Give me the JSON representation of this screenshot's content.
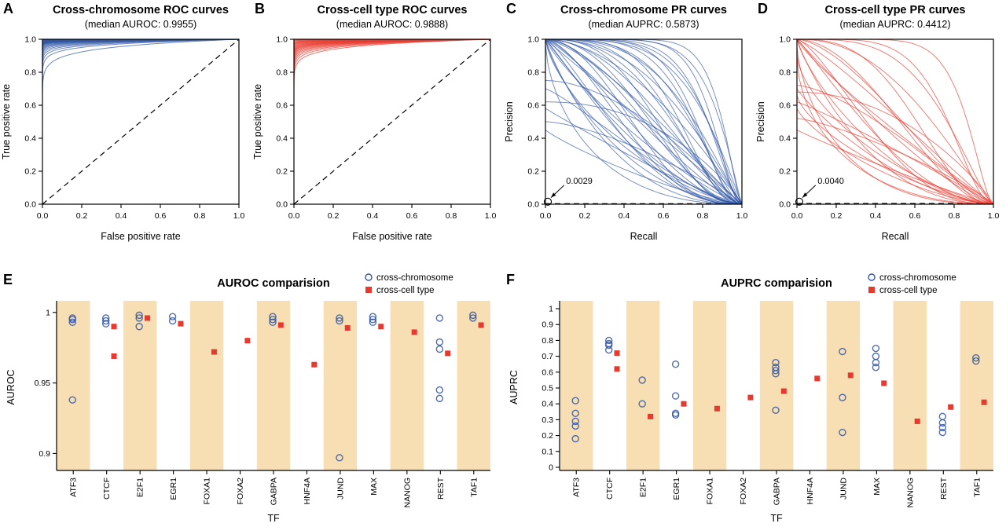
{
  "chart_data": [
    {
      "letter": "A",
      "kind": "roc",
      "type": "line",
      "title": "Cross-chromosome ROC curves",
      "subtitle": "(median AUROC: 0.9955)",
      "xlabel": "False positive rate",
      "ylabel": "True positive rate",
      "xlim": [
        0,
        1
      ],
      "ylim": [
        0,
        1
      ],
      "xtick_vals": [
        0,
        0.2,
        0.4,
        0.6,
        0.8,
        1.0
      ],
      "xtick_labels": [
        "0.0",
        "0.2",
        "0.4",
        "0.6",
        "0.8",
        "1.0"
      ],
      "ytick_vals": [
        0,
        0.2,
        0.4,
        0.6,
        0.8,
        1.0
      ],
      "ytick_labels": [
        "0.0",
        "0.2",
        "0.4",
        "0.6",
        "0.8",
        "1.0"
      ],
      "color": "#2f55a4",
      "diagonal": true,
      "curve_aucs": [
        0.9996,
        0.9993,
        0.999,
        0.9988,
        0.9986,
        0.9984,
        0.9982,
        0.998,
        0.9978,
        0.9976,
        0.9974,
        0.9972,
        0.997,
        0.9967,
        0.9963,
        0.996,
        0.9958,
        0.9955,
        0.9952,
        0.9948,
        0.9944,
        0.994,
        0.9935,
        0.9928,
        0.992,
        0.991,
        0.9898,
        0.9885,
        0.987,
        0.985,
        0.9825,
        0.9795,
        0.9755,
        0.9695,
        0.953
      ]
    },
    {
      "letter": "B",
      "kind": "roc",
      "type": "line",
      "title": "Cross-cell type ROC curves",
      "subtitle": "(median AUROC: 0.9888)",
      "xlabel": "False positive rate",
      "ylabel": "True positive rate",
      "xlim": [
        0,
        1
      ],
      "ylim": [
        0,
        1
      ],
      "xtick_vals": [
        0,
        0.2,
        0.4,
        0.6,
        0.8,
        1.0
      ],
      "xtick_labels": [
        "0.0",
        "0.2",
        "0.4",
        "0.6",
        "0.8",
        "1.0"
      ],
      "ytick_vals": [
        0,
        0.2,
        0.4,
        0.6,
        0.8,
        1.0
      ],
      "ytick_labels": [
        "0.0",
        "0.2",
        "0.4",
        "0.6",
        "0.8",
        "1.0"
      ],
      "color": "#e8392e",
      "diagonal": true,
      "curve_aucs": [
        0.9992,
        0.9985,
        0.998,
        0.997,
        0.9962,
        0.9955,
        0.9948,
        0.994,
        0.993,
        0.992,
        0.991,
        0.99,
        0.9888,
        0.9878,
        0.9868,
        0.9858,
        0.9845,
        0.983,
        0.9815,
        0.9795,
        0.9775,
        0.975,
        0.972,
        0.968,
        0.9625
      ]
    },
    {
      "letter": "C",
      "kind": "pr",
      "type": "line",
      "title": "Cross-chromosome PR curves",
      "subtitle": "(median AUPRC: 0.5873)",
      "xlabel": "Recall",
      "ylabel": "Precision",
      "xlim": [
        0,
        1
      ],
      "ylim": [
        0,
        1
      ],
      "xtick_vals": [
        0,
        0.2,
        0.4,
        0.6,
        0.8,
        1.0
      ],
      "xtick_labels": [
        "0.0",
        "0.2",
        "0.4",
        "0.6",
        "0.8",
        "1.0"
      ],
      "ytick_vals": [
        0,
        0.2,
        0.4,
        0.6,
        0.8,
        1.0
      ],
      "ytick_labels": [
        "0.0",
        "0.2",
        "0.4",
        "0.6",
        "0.8",
        "1.0"
      ],
      "color": "#2f55a4",
      "baseline": 0.0029,
      "annotation": "0.0029",
      "curves": [
        {
          "s": 1,
          "a": 10,
          "b": 1.6
        },
        {
          "s": 1,
          "a": 8,
          "b": 2.2
        },
        {
          "s": 1,
          "a": 7,
          "b": 1.2
        },
        {
          "s": 1,
          "a": 6,
          "b": 1.8
        },
        {
          "s": 1,
          "a": 5.5,
          "b": 2.6
        },
        {
          "s": 1,
          "a": 5,
          "b": 1.4
        },
        {
          "s": 1,
          "a": 4.5,
          "b": 2.1
        },
        {
          "s": 1,
          "a": 4,
          "b": 1.1
        },
        {
          "s": 1,
          "a": 4,
          "b": 2.8
        },
        {
          "s": 1,
          "a": 3.5,
          "b": 1.6
        },
        {
          "s": 1,
          "a": 3.2,
          "b": 2.3
        },
        {
          "s": 1,
          "a": 3,
          "b": 1.2
        },
        {
          "s": 1,
          "a": 2.8,
          "b": 3
        },
        {
          "s": 1,
          "a": 2.6,
          "b": 1.8
        },
        {
          "s": 1,
          "a": 2.4,
          "b": 1.1
        },
        {
          "s": 1,
          "a": 2.2,
          "b": 2.4
        },
        {
          "s": 1,
          "a": 2,
          "b": 1.5
        },
        {
          "s": 1,
          "a": 2,
          "b": 3.2
        },
        {
          "s": 1,
          "a": 1.8,
          "b": 1
        },
        {
          "s": 1,
          "a": 1.8,
          "b": 2
        },
        {
          "s": 1,
          "a": 1.6,
          "b": 1.4
        },
        {
          "s": 1,
          "a": 1.6,
          "b": 2.8
        },
        {
          "s": 1,
          "a": 1.4,
          "b": 1.1
        },
        {
          "s": 1,
          "a": 1.4,
          "b": 1.9
        },
        {
          "s": 1,
          "a": 1.3,
          "b": 2.5
        },
        {
          "s": 1,
          "a": 1.2,
          "b": 1.3
        },
        {
          "s": 1,
          "a": 1.1,
          "b": 2
        },
        {
          "s": 1,
          "a": 1,
          "b": 1
        },
        {
          "s": 1,
          "a": 1,
          "b": 1.6
        },
        {
          "s": 1,
          "a": 0.9,
          "b": 2.3
        },
        {
          "s": 1,
          "a": 0.85,
          "b": 1.2
        },
        {
          "s": 1,
          "a": 0.8,
          "b": 1.8
        },
        {
          "s": 1,
          "a": 0.7,
          "b": 1.4
        },
        {
          "s": 0.97,
          "a": 0.65,
          "b": 2.2
        },
        {
          "s": 0.75,
          "a": 1.8,
          "b": 1.1
        },
        {
          "s": 0.7,
          "a": 1.2,
          "b": 1.5
        },
        {
          "s": 0.62,
          "a": 2.2,
          "b": 0.9
        },
        {
          "s": 0.58,
          "a": 1,
          "b": 1.2
        },
        {
          "s": 0.5,
          "a": 1.5,
          "b": 1
        },
        {
          "s": 0.45,
          "a": 0.9,
          "b": 1.3
        }
      ]
    },
    {
      "letter": "D",
      "kind": "pr",
      "type": "line",
      "title": "Cross-cell type PR curves",
      "subtitle": "(median AUPRC: 0.4412)",
      "xlabel": "Recall",
      "ylabel": "Precision",
      "xlim": [
        0,
        1
      ],
      "ylim": [
        0,
        1
      ],
      "xtick_vals": [
        0,
        0.2,
        0.4,
        0.6,
        0.8,
        1.0
      ],
      "xtick_labels": [
        "0.0",
        "0.2",
        "0.4",
        "0.6",
        "0.8",
        "1.0"
      ],
      "ytick_vals": [
        0,
        0.2,
        0.4,
        0.6,
        0.8,
        1.0
      ],
      "ytick_labels": [
        "0.0",
        "0.2",
        "0.4",
        "0.6",
        "0.8",
        "1.0"
      ],
      "color": "#e8392e",
      "baseline": 0.004,
      "annotation": "0.0040",
      "curves": [
        {
          "s": 1,
          "a": 8,
          "b": 1.8
        },
        {
          "s": 1,
          "a": 5,
          "b": 2.2
        },
        {
          "s": 1,
          "a": 3.5,
          "b": 1.4
        },
        {
          "s": 1,
          "a": 2.8,
          "b": 2.4
        },
        {
          "s": 1,
          "a": 2.2,
          "b": 1.2
        },
        {
          "s": 1,
          "a": 1.9,
          "b": 2
        },
        {
          "s": 1,
          "a": 1.6,
          "b": 1.5
        },
        {
          "s": 1,
          "a": 1.4,
          "b": 2.6
        },
        {
          "s": 1,
          "a": 1.2,
          "b": 1.1
        },
        {
          "s": 1,
          "a": 1.1,
          "b": 1.9
        },
        {
          "s": 1,
          "a": 1,
          "b": 1.3
        },
        {
          "s": 1,
          "a": 0.9,
          "b": 2.2
        },
        {
          "s": 1,
          "a": 0.85,
          "b": 1
        },
        {
          "s": 1,
          "a": 0.8,
          "b": 1.6
        },
        {
          "s": 0.95,
          "a": 0.7,
          "b": 2.4
        },
        {
          "s": 0.9,
          "a": 0.65,
          "b": 1.3
        },
        {
          "s": 0.88,
          "a": 0.6,
          "b": 2
        },
        {
          "s": 0.72,
          "a": 1.5,
          "b": 1.2
        },
        {
          "s": 0.7,
          "a": 0.9,
          "b": 1.6
        },
        {
          "s": 0.68,
          "a": 2,
          "b": 0.9
        },
        {
          "s": 0.66,
          "a": 0.7,
          "b": 1.3
        },
        {
          "s": 0.62,
          "a": 1.1,
          "b": 1
        },
        {
          "s": 0.58,
          "a": 0.8,
          "b": 1.5
        },
        {
          "s": 0.52,
          "a": 1.3,
          "b": 0.9
        },
        {
          "s": 0.45,
          "a": 0.95,
          "b": 1.1
        }
      ]
    },
    {
      "letter": "E",
      "kind": "scatter",
      "type": "scatter",
      "title": "AUROC comparision",
      "xlabel": "TF",
      "ylabel": "AUROC",
      "ylim": [
        0.888,
        1.006
      ],
      "ytick_vals": [
        0.9,
        0.95,
        1
      ],
      "ytick_labels": [
        "0.9",
        "0.95",
        "1"
      ],
      "categories": [
        "ATF3",
        "CTCF",
        "E2F1",
        "EGR1",
        "FOXA1",
        "FOXA2",
        "GABPA",
        "HNF4A",
        "JUND",
        "MAX",
        "NANOG",
        "REST",
        "TAF1"
      ],
      "band_indices": [
        0,
        2,
        4,
        6,
        8,
        10,
        12
      ],
      "band_color": "#f6d7a0",
      "series": [
        {
          "name": "cross-chromosome",
          "marker": "circle",
          "color": "#2f55a4",
          "values": [
            [
              0.996,
              0.995,
              0.993,
              0.938
            ],
            [
              0.996,
              0.994,
              0.992
            ],
            [
              0.998,
              0.996,
              0.99
            ],
            [
              0.997,
              0.994
            ],
            [],
            [],
            [
              0.997,
              0.995,
              0.993
            ],
            [],
            [
              0.996,
              0.994,
              0.897
            ],
            [
              0.997,
              0.995,
              0.993
            ],
            [],
            [
              0.996,
              0.979,
              0.974,
              0.945,
              0.939
            ],
            [
              0.998,
              0.996
            ]
          ]
        },
        {
          "name": "cross-cell type",
          "marker": "square",
          "color": "#e8392e",
          "values": [
            [],
            [
              0.99,
              0.969
            ],
            [
              0.996
            ],
            [
              0.992
            ],
            [
              0.972
            ],
            [
              0.98
            ],
            [
              0.991
            ],
            [
              0.963
            ],
            [
              0.989
            ],
            [
              0.99
            ],
            [
              0.986
            ],
            [
              0.971
            ],
            [
              0.991
            ]
          ]
        }
      ]
    },
    {
      "letter": "F",
      "kind": "scatter",
      "type": "scatter",
      "title": "AUPRC comparision",
      "xlabel": "TF",
      "ylabel": "AUPRC",
      "ylim": [
        -0.02,
        1.03
      ],
      "ytick_vals": [
        0,
        0.1,
        0.2,
        0.3,
        0.4,
        0.5,
        0.6,
        0.7,
        0.8,
        0.9,
        1
      ],
      "ytick_labels": [
        "0",
        "0.1",
        "0.2",
        "0.3",
        "0.4",
        "0.5",
        "0.6",
        "0.7",
        "0.8",
        "0.9",
        "1"
      ],
      "categories": [
        "ATF3",
        "CTCF",
        "E2F1",
        "EGR1",
        "FOXA1",
        "FOXA2",
        "GABPA",
        "HNF4A",
        "JUND",
        "MAX",
        "NANOG",
        "REST",
        "TAF1"
      ],
      "band_indices": [
        0,
        2,
        4,
        6,
        8,
        10,
        12
      ],
      "band_color": "#f6d7a0",
      "series": [
        {
          "name": "cross-chromosome",
          "marker": "circle",
          "color": "#2f55a4",
          "values": [
            [
              0.42,
              0.34,
              0.29,
              0.26,
              0.18
            ],
            [
              0.8,
              0.78,
              0.77,
              0.74
            ],
            [
              0.55,
              0.4
            ],
            [
              0.65,
              0.45,
              0.34,
              0.33
            ],
            [],
            [],
            [
              0.66,
              0.63,
              0.61,
              0.59,
              0.36
            ],
            [],
            [
              0.73,
              0.44,
              0.22
            ],
            [
              0.75,
              0.7,
              0.66,
              0.63
            ],
            [],
            [
              0.32,
              0.28,
              0.25,
              0.22
            ],
            [
              0.69,
              0.67
            ]
          ]
        },
        {
          "name": "cross-cell type",
          "marker": "square",
          "color": "#e8392e",
          "values": [
            [],
            [
              0.72,
              0.62
            ],
            [
              0.32
            ],
            [
              0.4
            ],
            [
              0.37
            ],
            [
              0.44
            ],
            [
              0.48
            ],
            [
              0.56
            ],
            [
              0.58
            ],
            [
              0.53
            ],
            [
              0.29
            ],
            [
              0.38
            ],
            [
              0.41
            ]
          ]
        }
      ]
    }
  ]
}
